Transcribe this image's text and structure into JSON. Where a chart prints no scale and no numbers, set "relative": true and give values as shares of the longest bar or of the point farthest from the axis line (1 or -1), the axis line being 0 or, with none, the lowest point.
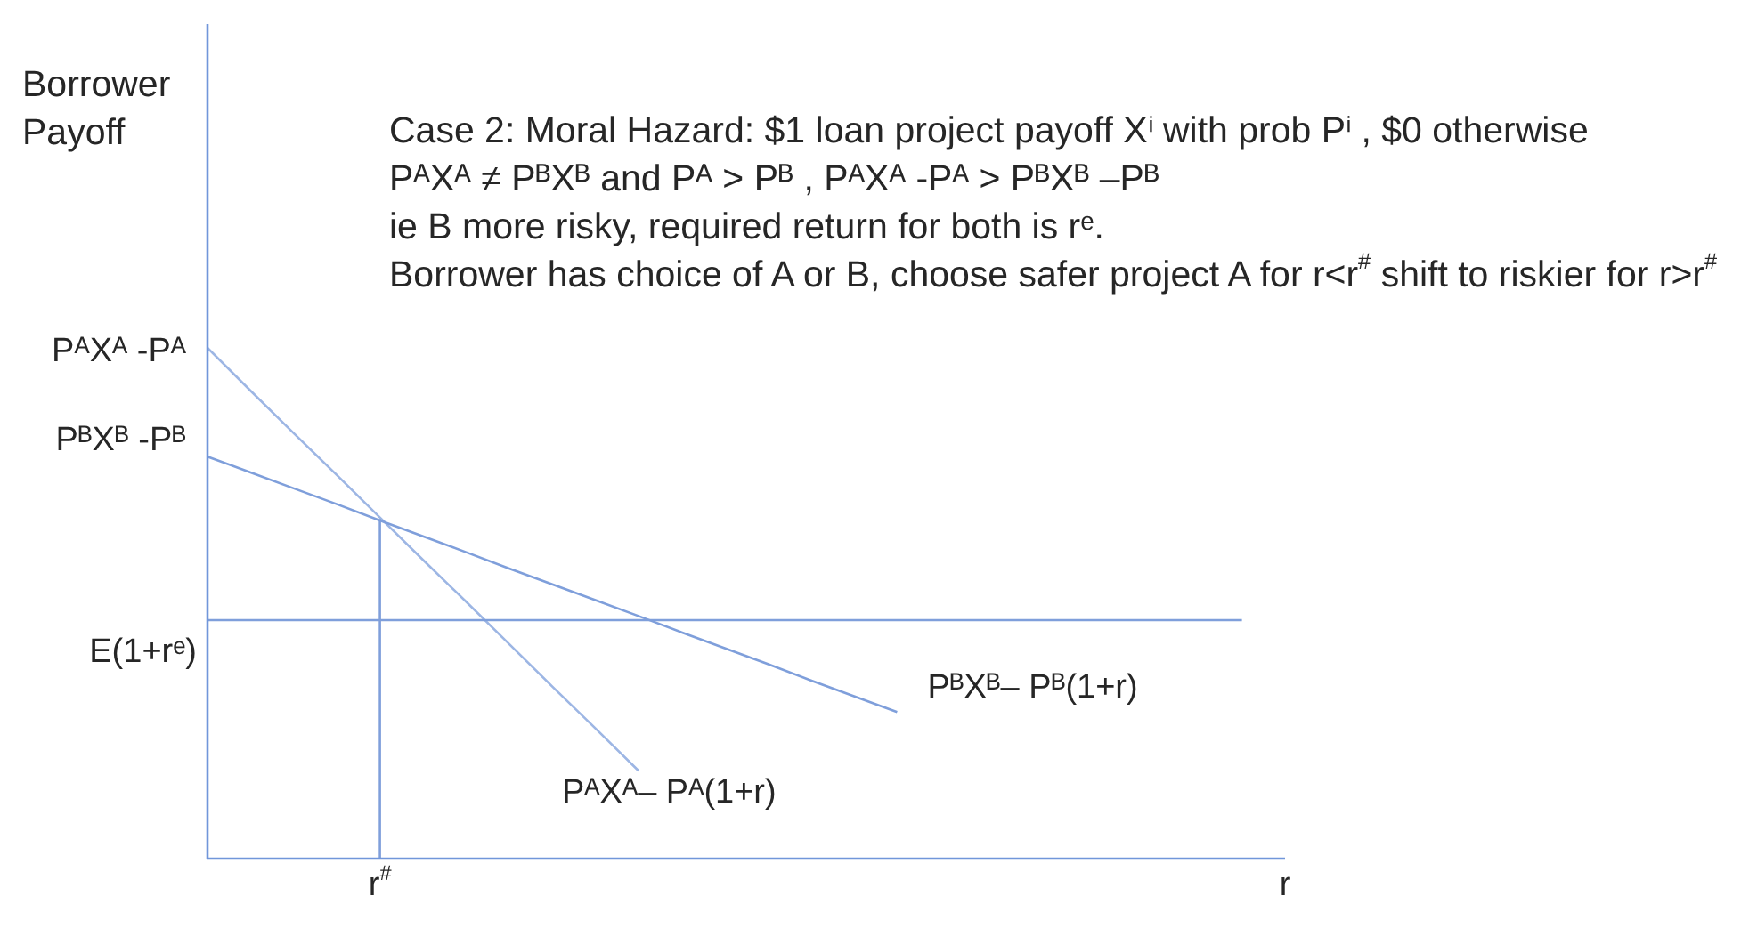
{
  "chart_data": {
    "type": "line",
    "relative": true,
    "categories": [
      null,
      null,
      null,
      null,
      "r$^{#}$",
      null,
      null,
      null,
      null,
      null,
      null,
      null,
      null,
      null,
      null,
      null,
      null,
      null,
      null,
      null,
      null,
      null,
      null,
      null,
      null,
      "r"
    ],
    "annotations": [
      "Borrower Payoff",
      "Case  2: Moral Hazard: $1 loan project payoff Xⁱ with prob Pⁱ , $0 otherwise",
      "PᴬXᴬ ≠ PᴮXᴮ and Pᴬ > Pᴮ , PᴬXᴬ -Pᴬ > PᴮXᴮ –Pᴮ",
      "ie B more risky,  required return for both is rᵉ.",
      "Borrower has choice of A or B, choose safer project A for r<r$^{#}$ shift to riskier for r>r$^{#}$",
      "PᴬXᴬ -Pᴬ",
      "PᴮXᴮ -Pᴮ",
      "E(1+rᵉ)"
    ],
    "series": [
      {
        "name": "PᴬXᴬ– Pᴬ(1+r)",
        "color": "#9db6e4",
        "values": [
          1,
          0.916,
          0.833,
          0.751,
          0.668,
          0.585,
          0.503,
          0.42,
          0.337,
          0.255,
          0.172,
          null,
          null,
          null,
          null,
          null,
          null,
          null,
          null,
          null,
          null,
          null,
          null,
          null,
          null,
          null
        ]
      },
      {
        "name": "PᴮXᴮ– Pᴮ(1+r)",
        "color": "#7f9fdb",
        "values": [
          0.787,
          0.756,
          0.725,
          0.694,
          0.662,
          0.631,
          0.6,
          0.568,
          0.537,
          0.506,
          0.475,
          0.443,
          0.412,
          0.381,
          0.349,
          0.318,
          0.287,
          null,
          null,
          null,
          null,
          null,
          null,
          null,
          null,
          null
        ]
      },
      {
        "color": "#7f9fdb",
        "values": [
          0.467,
          0.467,
          0.467,
          0.467,
          0.467,
          0.467,
          0.467,
          0.467,
          0.467,
          0.467,
          0.467,
          0.467,
          0.467,
          0.467,
          0.467,
          0.467,
          0.467,
          0.467,
          0.467,
          0.467,
          0.467,
          0.467,
          0.467,
          0.467,
          0.467,
          null
        ]
      },
      {
        "color": "#7f9fdb",
        "x": [
          "r$^{#}$",
          "r$^{#}$"
        ],
        "values": [
          0.665,
          0
        ]
      }
    ]
  }
}
